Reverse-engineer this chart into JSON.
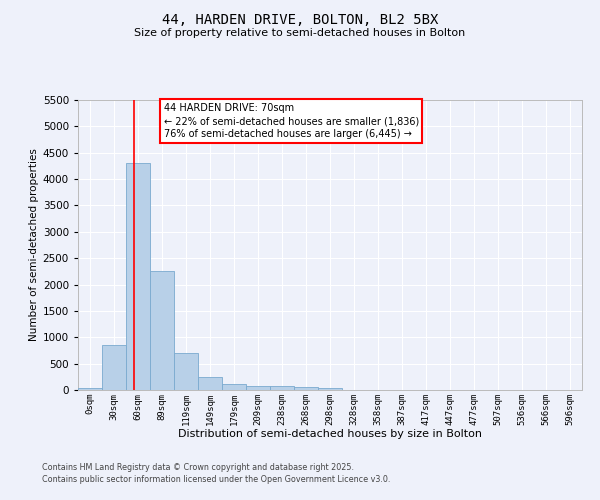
{
  "title": "44, HARDEN DRIVE, BOLTON, BL2 5BX",
  "subtitle": "Size of property relative to semi-detached houses in Bolton",
  "xlabel": "Distribution of semi-detached houses by size in Bolton",
  "ylabel": "Number of semi-detached properties",
  "bar_color": "#b8d0e8",
  "bar_edge_color": "#7aaacf",
  "bin_labels": [
    "0sqm",
    "30sqm",
    "60sqm",
    "89sqm",
    "119sqm",
    "149sqm",
    "179sqm",
    "209sqm",
    "238sqm",
    "268sqm",
    "298sqm",
    "328sqm",
    "358sqm",
    "387sqm",
    "417sqm",
    "447sqm",
    "477sqm",
    "507sqm",
    "536sqm",
    "566sqm",
    "596sqm"
  ],
  "bar_values": [
    30,
    850,
    4300,
    2250,
    700,
    250,
    120,
    70,
    70,
    50,
    40,
    0,
    0,
    0,
    0,
    0,
    0,
    0,
    0,
    0,
    0
  ],
  "ylim": [
    0,
    5500
  ],
  "yticks": [
    0,
    500,
    1000,
    1500,
    2000,
    2500,
    3000,
    3500,
    4000,
    4500,
    5000,
    5500
  ],
  "red_line_x": 2.333,
  "annotation_title": "44 HARDEN DRIVE: 70sqm",
  "annotation_line1": "← 22% of semi-detached houses are smaller (1,836)",
  "annotation_line2": "76% of semi-detached houses are larger (6,445) →",
  "background_color": "#eef1fa",
  "grid_color": "#ffffff",
  "footer_line1": "Contains HM Land Registry data © Crown copyright and database right 2025.",
  "footer_line2": "Contains public sector information licensed under the Open Government Licence v3.0."
}
